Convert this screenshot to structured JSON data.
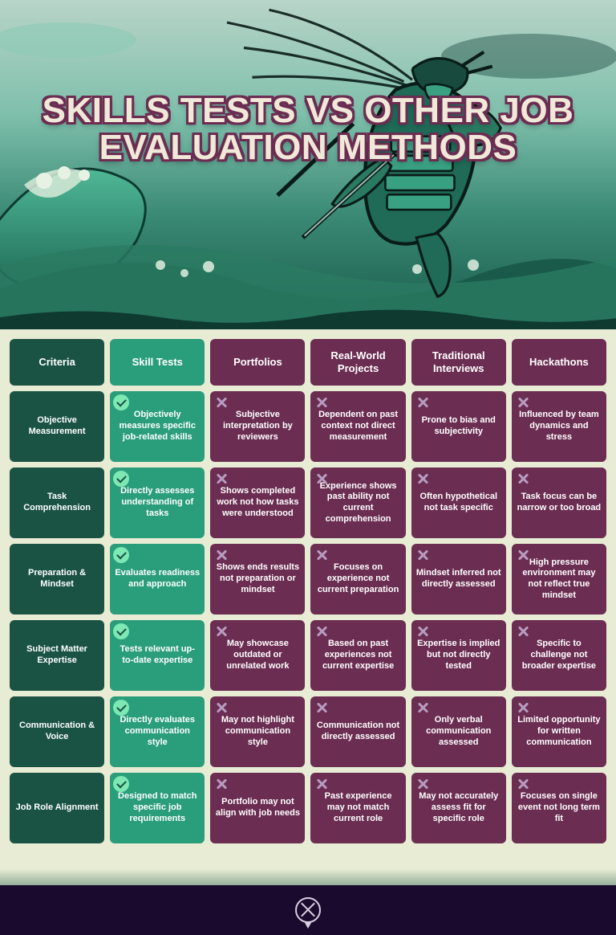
{
  "title": "SKILLS TESTS VS OTHER JOB EVALUATION METHODS",
  "colors": {
    "header_dark_green": "#1a5344",
    "teal": "#2a9d7a",
    "plum": "#6b2d52",
    "page_bg": "#e8ecd4",
    "footer_bg": "#1a0a2e",
    "check_bg": "#7de8b4",
    "cross_color": "#b89bc0",
    "title_fill": "#f0e8d8",
    "title_stroke": "#6b2d52"
  },
  "table": {
    "headers": [
      "Criteria",
      "Skill Tests",
      "Portfolios",
      "Real-World Projects",
      "Traditional Interviews",
      "Hackathons"
    ],
    "header_styles": [
      "c-dark-green",
      "c-teal",
      "c-plum-hdr",
      "c-plum-hdr",
      "c-plum-hdr",
      "c-plum-hdr"
    ],
    "rows": [
      {
        "criteria": "Objective Measurement",
        "cells": [
          {
            "text": "Objectively measures specific job-related skills",
            "pass": true
          },
          {
            "text": "Subjective interpretation by reviewers",
            "pass": false
          },
          {
            "text": "Dependent on past context not direct measurement",
            "pass": false
          },
          {
            "text": "Prone to bias and subjectivity",
            "pass": false
          },
          {
            "text": "Influenced by team dynamics and stress",
            "pass": false
          }
        ]
      },
      {
        "criteria": "Task Comprehension",
        "cells": [
          {
            "text": "Directly assesses understanding of tasks",
            "pass": true
          },
          {
            "text": "Shows completed work not how tasks were understood",
            "pass": false
          },
          {
            "text": "Experience shows past ability not current comprehension",
            "pass": false
          },
          {
            "text": "Often hypothetical not task specific",
            "pass": false
          },
          {
            "text": "Task focus can be narrow or too broad",
            "pass": false
          }
        ]
      },
      {
        "criteria": "Preparation & Mindset",
        "cells": [
          {
            "text": "Evaluates readiness and approach",
            "pass": true
          },
          {
            "text": "Shows ends results not preparation or mindset",
            "pass": false
          },
          {
            "text": "Focuses on experience not current preparation",
            "pass": false
          },
          {
            "text": "Mindset inferred not directly assessed",
            "pass": false
          },
          {
            "text": "High pressure environment may not reflect true mindset",
            "pass": false
          }
        ]
      },
      {
        "criteria": "Subject Matter Expertise",
        "cells": [
          {
            "text": "Tests relevant up-to-date expertise",
            "pass": true
          },
          {
            "text": "May showcase outdated or unrelated work",
            "pass": false
          },
          {
            "text": "Based on past experiences not current expertise",
            "pass": false
          },
          {
            "text": "Expertise is implied but not directly tested",
            "pass": false
          },
          {
            "text": "Specific to challenge not broader expertise",
            "pass": false
          }
        ]
      },
      {
        "criteria": "Communication & Voice",
        "cells": [
          {
            "text": "Directly evaluates communication style",
            "pass": true
          },
          {
            "text": "May not highlight communication style",
            "pass": false
          },
          {
            "text": "Communication not directly assessed",
            "pass": false
          },
          {
            "text": "Only verbal communication assessed",
            "pass": false
          },
          {
            "text": "Limited opportunity for written communication",
            "pass": false
          }
        ]
      },
      {
        "criteria": "Job Role Alignment",
        "cells": [
          {
            "text": "Designed to match specific job requirements",
            "pass": true
          },
          {
            "text": "Portfolio may not align with job needs",
            "pass": false
          },
          {
            "text": "Past experience may not match current role",
            "pass": false
          },
          {
            "text": "May not accurately assess fit for specific role",
            "pass": false
          },
          {
            "text": "Focuses on single event not long term fit",
            "pass": false
          }
        ]
      }
    ]
  }
}
